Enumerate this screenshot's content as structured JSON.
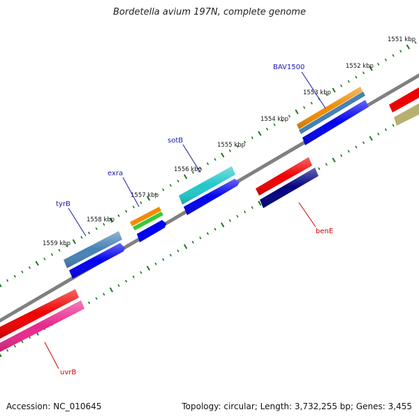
{
  "title": "Bordetella avium 197N, complete genome",
  "footer": {
    "accession": "Accession: NC_010645",
    "summary": "Topology: circular; Length: 3,732,255 bp; Genes: 3,455"
  },
  "scale_labels": [
    "1551 kbp",
    "1552 kbp",
    "1553 kbp",
    "1554 kbp",
    "1555 kbp",
    "1556 kbp",
    "1557 kbp",
    "1558 kbp",
    "1559 kbp"
  ],
  "gene_labels": [
    "BAV1500",
    "sotB",
    "exra",
    "tyrB",
    "benE",
    "uvrB"
  ],
  "colors": {
    "backbone": "#808080",
    "tick": "#1a7a1a",
    "gene_blue": "#0000ee",
    "gene_red": "#ee0000",
    "steelblue": "#4682b4",
    "cyan": "#20c8c8",
    "orange": "#f08c00",
    "green": "#33cc33",
    "navy": "#000080",
    "pink": "#e8288c",
    "khaki": "#b8b070",
    "label_blue": "#1a1aaa",
    "label_red": "#cc0000"
  }
}
